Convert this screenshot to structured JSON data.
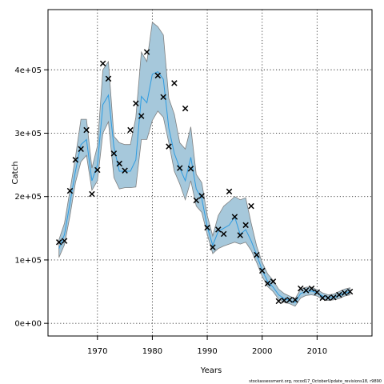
{
  "chart_data": {
    "type": "line",
    "title": "",
    "xlabel": "Years",
    "ylabel": "Catch",
    "xlim": [
      1961,
      2020
    ],
    "ylim": [
      -20000,
      495000
    ],
    "x_ticks": [
      1970,
      1980,
      1990,
      2000,
      2010
    ],
    "y_ticks": [
      0,
      100000,
      200000,
      300000,
      400000
    ],
    "y_tick_labels": [
      "0e+00",
      "1e+05",
      "2e+05",
      "3e+05",
      "4e+05"
    ],
    "grid": true,
    "footnote": "stockassessment.org, rocod17_OctoberUpdate_revisions18, r9890",
    "colors": {
      "band": "#a6c8db",
      "band_outline": "#7f7f7f",
      "line": "#2e9be0",
      "observed": "#000000"
    },
    "estimated": {
      "x": [
        1963,
        1964,
        1965,
        1966,
        1967,
        1968,
        1969,
        1970,
        1971,
        1972,
        1973,
        1974,
        1975,
        1976,
        1977,
        1978,
        1979,
        1980,
        1981,
        1982,
        1983,
        1984,
        1985,
        1986,
        1987,
        1988,
        1989,
        1990,
        1991,
        1992,
        1993,
        1994,
        1995,
        1996,
        1997,
        1998,
        1999,
        2000,
        2001,
        2002,
        2003,
        2004,
        2005,
        2006,
        2007,
        2008,
        2009,
        2010,
        2011,
        2012,
        2013,
        2014,
        2015,
        2016
      ],
      "value": [
        118000,
        140000,
        190000,
        240000,
        282000,
        290000,
        225000,
        250000,
        345000,
        360000,
        278000,
        240000,
        240000,
        240000,
        258000,
        358000,
        348000,
        393000,
        397000,
        385000,
        308000,
        268000,
        245000,
        225000,
        262000,
        212000,
        197000,
        152000,
        123000,
        145000,
        150000,
        155000,
        168000,
        140000,
        148000,
        130000,
        108000,
        84000,
        66000,
        57000,
        45000,
        39000,
        36000,
        33000,
        47000,
        50000,
        51000,
        48000,
        43000,
        41000,
        41000,
        44000,
        48000,
        50000
      ],
      "lower": [
        104000,
        124000,
        170000,
        222000,
        255000,
        265000,
        210000,
        225000,
        300000,
        318000,
        230000,
        212000,
        214000,
        214000,
        215000,
        290000,
        290000,
        320000,
        335000,
        325000,
        285000,
        240000,
        220000,
        195000,
        225000,
        185000,
        175000,
        140000,
        110000,
        118000,
        122000,
        125000,
        128000,
        125000,
        128000,
        115000,
        96000,
        74000,
        58000,
        50000,
        38000,
        33000,
        31000,
        27000,
        40000,
        44000,
        45000,
        43000,
        38000,
        36000,
        37000,
        39000,
        43000,
        45000
      ],
      "upper": [
        132000,
        158000,
        210000,
        262000,
        322000,
        322000,
        245000,
        280000,
        400000,
        413000,
        295000,
        285000,
        282000,
        282000,
        325000,
        428000,
        413000,
        475000,
        468000,
        455000,
        355000,
        330000,
        285000,
        275000,
        310000,
        235000,
        222000,
        170000,
        138000,
        170000,
        185000,
        192000,
        200000,
        195000,
        198000,
        158000,
        122000,
        96000,
        78000,
        68000,
        54000,
        47000,
        43000,
        39000,
        54000,
        57000,
        57000,
        53000,
        48000,
        45000,
        46000,
        50000,
        54000,
        56000
      ]
    },
    "observed": {
      "x": [
        1963,
        1964,
        1965,
        1966,
        1967,
        1968,
        1969,
        1970,
        1971,
        1972,
        1973,
        1974,
        1975,
        1976,
        1977,
        1978,
        1979,
        1981,
        1982,
        1983,
        1984,
        1985,
        1986,
        1987,
        1988,
        1989,
        1990,
        1991,
        1992,
        1993,
        1994,
        1995,
        1996,
        1997,
        1998,
        1999,
        2000,
        2001,
        2002,
        2003,
        2004,
        2005,
        2006,
        2007,
        2008,
        2009,
        2010,
        2011,
        2012,
        2013,
        2014,
        2015,
        2016
      ],
      "value": [
        128000,
        130000,
        209000,
        258000,
        275000,
        305000,
        204000,
        242000,
        410000,
        386000,
        268000,
        252000,
        241000,
        305000,
        347000,
        327000,
        428000,
        391000,
        357000,
        279000,
        379000,
        245000,
        339000,
        244000,
        194000,
        201000,
        151000,
        120000,
        148000,
        141000,
        208000,
        168000,
        139000,
        155000,
        185000,
        108000,
        83000,
        63000,
        66000,
        35000,
        36000,
        37000,
        37000,
        55000,
        52000,
        55000,
        49000,
        40000,
        40000,
        41000,
        45000,
        48000,
        50000
      ]
    }
  }
}
